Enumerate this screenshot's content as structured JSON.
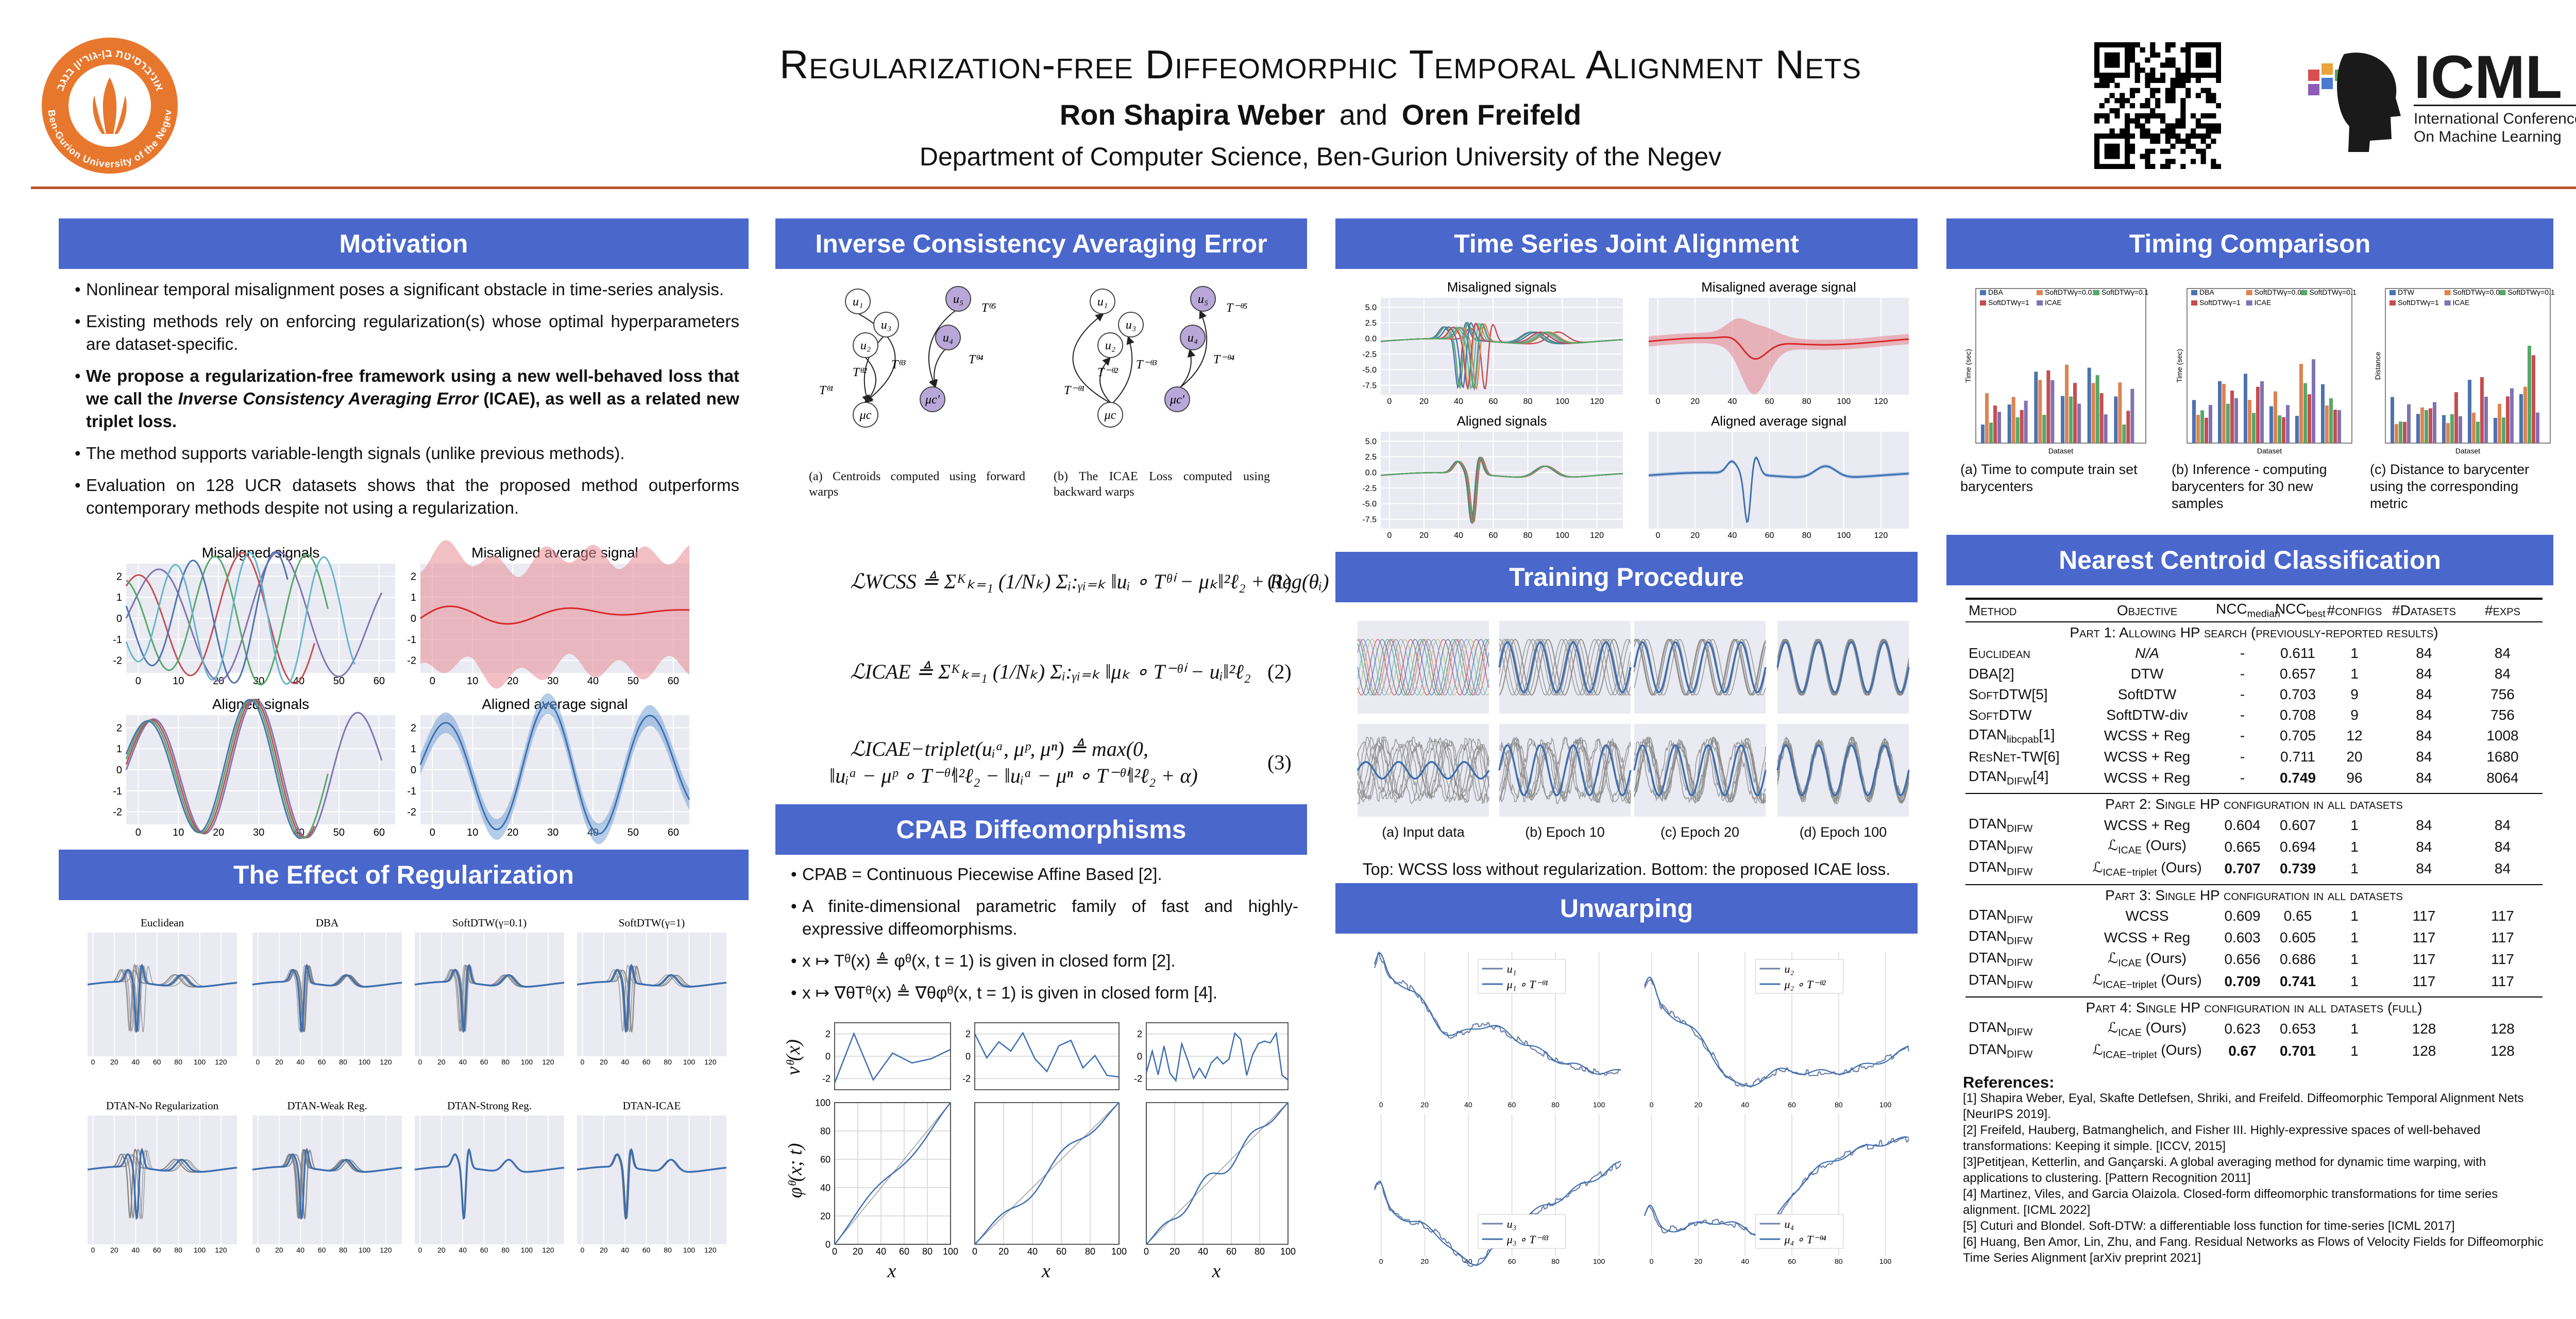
{
  "header": {
    "title": "Regularization-free Diffeomorphic Temporal Alignment Nets",
    "author_1": "Ron Shapira Weber",
    "conjunction": "and",
    "author_2": "Oren Freifeld",
    "affiliation": "Department of Computer Science, Ben-Gurion University of the Negev",
    "university_en": "Ben-Gurion University of the Negev",
    "university_he": "אוניברסיטת בן-גוריון בנגב",
    "conference_short": "ICML",
    "conference_line_1": "International Conference",
    "conference_line_2": "On Machine Learning"
  },
  "motivation": {
    "heading": "Motivation",
    "bullets": [
      [
        {
          "text": "Nonlinear temporal misalignment poses a significant obstacle in time-series analysis."
        }
      ],
      [
        {
          "text": "Existing methods rely on enforcing regularization(s) whose optimal hyperparameters are dataset-specific."
        }
      ],
      [
        {
          "text": "We propose a regularization-free framework using a new well-behaved loss that we call the ",
          "style": "bold"
        },
        {
          "text": "Inverse Consistency Averaging Error",
          "style": "bold-italic"
        },
        {
          "text": " (ICAE), as well as a related new triplet loss.",
          "style": "bold"
        }
      ],
      [
        {
          "text": "The method supports variable-length signals (unlike previous methods)."
        }
      ],
      [
        {
          "text": "Evaluation on 128 UCR datasets shows that the proposed method outperforms contemporary methods despite not using a regularization."
        }
      ]
    ],
    "plots": {
      "xlim": [
        -3,
        64
      ],
      "ylim": [
        -2.6,
        2.6
      ],
      "xticks": [
        0,
        10,
        20,
        30,
        40,
        50,
        60
      ],
      "yticks": [
        2,
        1,
        0,
        -1,
        -2
      ],
      "panels": [
        {
          "title": "Misaligned signals"
        },
        {
          "title": "Misaligned average signal"
        },
        {
          "title": "Aligned signals"
        },
        {
          "title": "Aligned average signal"
        }
      ]
    }
  },
  "regularization": {
    "heading": "The Effect of Regularization",
    "plots": {
      "xlim": [
        -5,
        135
      ],
      "xticks": [
        0,
        20,
        40,
        60,
        80,
        100,
        120
      ],
      "panels": [
        {
          "title": "Euclidean"
        },
        {
          "title": "DBA"
        },
        {
          "title": "SoftDTW(γ=0.1)"
        },
        {
          "title": "SoftDTW(γ=1)"
        },
        {
          "title": "DTAN-No Regularization"
        },
        {
          "title": "DTAN-Weak Reg."
        },
        {
          "title": "DTAN-Strong Reg."
        },
        {
          "title": "DTAN-ICAE"
        }
      ]
    }
  },
  "icae": {
    "heading": "Inverse Consistency Averaging Error",
    "diagram_a": {
      "nodes": [
        "u₁",
        "u₃",
        "u₂",
        "μc",
        "u₅",
        "u₄",
        "μc′"
      ],
      "edge_labels": [
        "Tᶿ¹",
        "Tᶿ²",
        "Tᶿ³",
        "Tᶿ⁵",
        "Tᶿ⁴"
      ],
      "caption": "(a) Centroids computed using forward warps"
    },
    "diagram_b": {
      "nodes": [
        "u₁",
        "u₃",
        "u₂",
        "μc",
        "u₅",
        "u₄",
        "μc′"
      ],
      "edge_labels": [
        "T⁻ᶿ¹",
        "T⁻ᶿ²",
        "T⁻ᶿ³",
        "T⁻ᶿ⁵",
        "T⁻ᶿ⁴"
      ],
      "caption": "(b) The ICAE Loss computed using backward warps"
    },
    "equations": [
      {
        "lines": [
          "ℒWCSS ≜ Σᴷₖ₌₁ (1/Nₖ) Σᵢ:ᵧᵢ₌ₖ ‖uᵢ ∘ Tᶿⁱ − μₖ‖²ℓ₂ + Reg(θᵢ)"
        ],
        "number": "(1)"
      },
      {
        "lines": [
          "ℒICAE ≜ Σᴷₖ₌₁ (1/Nₖ) Σᵢ:ᵧᵢ₌ₖ ‖μₖ ∘ T⁻ᶿⁱ − uᵢ‖²ℓ₂"
        ],
        "number": "(2)"
      },
      {
        "lines": [
          "ℒICAE−triplet(uᵢᵃ, μᵖ, μⁿ) ≜ max(0,",
          "‖uᵢᵃ − μᵖ ∘ T⁻ᶿⁱ‖²ℓ₂ − ‖uᵢᵃ − μⁿ ∘ T⁻ᶿⁱ‖²ℓ₂ + α)"
        ],
        "number": "(3)"
      }
    ]
  },
  "cpab": {
    "heading": "CPAB Diffeomorphisms",
    "bullets": [
      "CPAB = Continuous Piecewise Affine Based [2].",
      "A finite-dimensional parametric family of fast and highly-expressive diffeomorphisms.",
      "x ↦ Tᶿ(x) ≜ φᶿ(x, t = 1) is given in closed form [2].",
      "x ↦ ∇θTᶿ(x) ≜ ∇θφᶿ(x, t = 1) is given in closed form [4]."
    ],
    "velocity": {
      "ylabel": "vᶿ(x)",
      "xlim": [
        0,
        100
      ],
      "ylim": [
        -3,
        3
      ],
      "yticks": [
        2,
        0,
        -2
      ]
    },
    "transform": {
      "ylabel": "φᶿ(x; t)",
      "xlabel": "x",
      "xlim": [
        0,
        100
      ],
      "ylim": [
        0,
        100
      ],
      "xticks": [
        0,
        20,
        40,
        60,
        80,
        100
      ],
      "yticks": [
        0,
        20,
        40,
        60,
        80,
        100
      ]
    }
  },
  "joint_alignment": {
    "heading": "Time Series Joint Alignment",
    "xlim": [
      -5,
      135
    ],
    "ylim": [
      -9,
      6.5
    ],
    "xticks": [
      0,
      20,
      40,
      60,
      80,
      100,
      120
    ],
    "yticks": [
      {
        "value": 5,
        "label": "5.0"
      },
      {
        "value": 2.5,
        "label": "2.5"
      },
      {
        "value": 0,
        "label": "0.0"
      },
      {
        "value": -2.5,
        "label": "-2.5"
      },
      {
        "value": -5,
        "label": "-5.0"
      },
      {
        "value": -7.5,
        "label": "-7.5"
      }
    ],
    "panels": [
      {
        "title": "Misaligned signals"
      },
      {
        "title": "Misaligned average signal"
      },
      {
        "title": "Aligned signals"
      },
      {
        "title": "Aligned average signal"
      }
    ]
  },
  "training": {
    "heading": "Training Procedure",
    "captions": [
      "(a) Input data",
      "(b) Epoch 10",
      "(c) Epoch 20",
      "(d) Epoch 100"
    ],
    "note": "Top: WCSS loss without regularization. Bottom: the proposed ICAE loss."
  },
  "unwarping": {
    "heading": "Unwarping",
    "xlim": [
      -3,
      110
    ],
    "xticks": [
      0,
      20,
      40,
      60,
      80,
      100
    ],
    "panels": [
      {
        "legend": [
          "u₁",
          "μ₁ ∘ T⁻ᶿ¹"
        ]
      },
      {
        "legend": [
          "u₂",
          "μ₂ ∘ T⁻ᶿ²"
        ]
      },
      {
        "legend": [
          "u₃",
          "μ₃ ∘ T⁻ᶿ³"
        ]
      },
      {
        "legend": [
          "u₄",
          "μ₄ ∘ T⁻ᶿ⁴"
        ]
      }
    ]
  },
  "timing": {
    "heading": "Timing Comparison",
    "charts": [
      {
        "legend": [
          "DBA",
          "SoftDTWγ=0.01",
          "SoftDTWγ=0.1",
          "SoftDTWγ=1",
          "ICAE"
        ],
        "xlabel": "Dataset",
        "ylabel": "Time (sec)",
        "caption": "(a) Time to compute train set barycenters"
      },
      {
        "legend": [
          "DBA",
          "SoftDTWγ=0.01",
          "SoftDTWγ=0.1",
          "SoftDTWγ=1",
          "ICAE"
        ],
        "xlabel": "Dataset",
        "ylabel": "Time (sec)",
        "caption": "(b) Inference - computing barycenters for 30 new samples"
      },
      {
        "legend": [
          "DTW",
          "SoftDTWγ=0.01",
          "SoftDTWγ=0.1",
          "SoftDTWγ=1",
          "ICAE"
        ],
        "xlabel": "Dataset",
        "ylabel": "Distance",
        "caption": "(c) Distance to barycenter using the corresponding metric"
      }
    ],
    "colors": [
      "#4c72b0",
      "#dd8452",
      "#55a868",
      "#c44e52",
      "#8172b3"
    ]
  },
  "ncc": {
    "heading": "Nearest Centroid Classification",
    "columns": [
      "Method",
      "Objective",
      {
        "text": "NCC",
        "sub": "median"
      },
      {
        "text": "NCC",
        "sub": "best"
      },
      "#configs",
      "#Datasets",
      "#exps"
    ],
    "parts": [
      {
        "title": "Part 1: Allowing HP search (previously-reported results)",
        "rows": [
          {
            "cells": [
              "Euclidean",
              "N/A",
              "-",
              "0.611",
              "1",
              "84",
              "84"
            ],
            "italic": [
              1
            ]
          },
          {
            "cells": [
              "DBA[2]",
              "DTW",
              "-",
              "0.657",
              "1",
              "84",
              "84"
            ]
          },
          {
            "cells": [
              "SoftDTW[5]",
              "SoftDTW",
              "-",
              "0.703",
              "9",
              "84",
              "756"
            ]
          },
          {
            "cells": [
              "SoftDTW",
              "SoftDTW-div",
              "-",
              "0.708",
              "9",
              "84",
              "756"
            ]
          },
          {
            "cells": [
              {
                "text": "DTAN",
                "sub": "libcpab",
                "after": "[1]"
              },
              "WCSS + Reg",
              "-",
              "0.705",
              "12",
              "84",
              "1008"
            ]
          },
          {
            "cells": [
              "ResNet-TW[6]",
              "WCSS + Reg",
              "-",
              "0.711",
              "20",
              "84",
              "1680"
            ]
          },
          {
            "cells": [
              {
                "text": "DTAN",
                "sub": "DIFW",
                "after": "[4]"
              },
              "WCSS + Reg",
              "-",
              "0.749",
              "96",
              "84",
              "8064"
            ],
            "bold": [
              3
            ]
          }
        ]
      },
      {
        "title": "Part 2: Single HP configuration in all datasets",
        "rows": [
          {
            "cells": [
              {
                "text": "DTAN",
                "sub": "DIFW"
              },
              "WCSS + Reg",
              "0.604",
              "0.607",
              "1",
              "84",
              "84"
            ]
          },
          {
            "cells": [
              {
                "text": "DTAN",
                "sub": "DIFW"
              },
              {
                "text": "ℒ",
                "sub": "ICAE",
                "after": " (Ours)"
              },
              "0.665",
              "0.694",
              "1",
              "84",
              "84"
            ]
          },
          {
            "cells": [
              {
                "text": "DTAN",
                "sub": "DIFW"
              },
              {
                "text": "ℒ",
                "sub": "ICAE−triplet",
                "after": " (Ours)"
              },
              "0.707",
              "0.739",
              "1",
              "84",
              "84"
            ],
            "bold": [
              2,
              3
            ]
          }
        ]
      },
      {
        "title": "Part 3: Single HP configuration in all datasets",
        "rows": [
          {
            "cells": [
              {
                "text": "DTAN",
                "sub": "DIFW"
              },
              "WCSS",
              "0.609",
              "0.65",
              "1",
              "117",
              "117"
            ]
          },
          {
            "cells": [
              {
                "text": "DTAN",
                "sub": "DIFW"
              },
              "WCSS + Reg",
              "0.603",
              "0.605",
              "1",
              "117",
              "117"
            ]
          },
          {
            "cells": [
              {
                "text": "DTAN",
                "sub": "DIFW"
              },
              {
                "text": "ℒ",
                "sub": "ICAE",
                "after": " (Ours)"
              },
              "0.656",
              "0.686",
              "1",
              "117",
              "117"
            ]
          },
          {
            "cells": [
              {
                "text": "DTAN",
                "sub": "DIFW"
              },
              {
                "text": "ℒ",
                "sub": "ICAE−triplet",
                "after": " (Ours)"
              },
              "0.709",
              "0.741",
              "1",
              "117",
              "117"
            ],
            "bold": [
              2,
              3
            ]
          }
        ]
      },
      {
        "title": "Part 4: Single HP configuration in all datasets (full)",
        "rows": [
          {
            "cells": [
              {
                "text": "DTAN",
                "sub": "DIFW"
              },
              {
                "text": "ℒ",
                "sub": "ICAE",
                "after": " (Ours)"
              },
              "0.623",
              "0.653",
              "1",
              "128",
              "128"
            ]
          },
          {
            "cells": [
              {
                "text": "DTAN",
                "sub": "DIFW"
              },
              {
                "text": "ℒ",
                "sub": "ICAE−triplet",
                "after": " (Ours)"
              },
              "0.67",
              "0.701",
              "1",
              "128",
              "128"
            ],
            "bold": [
              2,
              3
            ]
          }
        ]
      }
    ]
  },
  "references": {
    "title": "References:",
    "items": [
      "[1] Shapira Weber, Eyal, Skafte Detlefsen, Shriki, and Freifeld. Diffeomorphic Temporal Alignment Nets [NeurIPS 2019].",
      "[2] Freifeld, Hauberg, Batmanghelich, and Fisher III. Highly-expressive spaces of well-behaved transformations: Keeping it simple. [ICCV, 2015]",
      "[3]Petitjean, Ketterlin, and Gançarski. A global averaging method for dynamic time warping, with applications to clustering. [Pattern Recognition 2011]",
      "[4] Martinez, Viles, and Garcia Olaizola. Closed-form diffeomorphic transformations for time series alignment. [ICML 2022]",
      "[5] Cuturi and Blondel. Soft-DTW: a differentiable loss function for time-series [ICML 2017]",
      "[6] Huang, Ben Amor, Lin, Zhu, and Fang. Residual Networks as Flows of Velocity Fields for Diffeomorphic Time Series Alignment [arXiv preprint 2021]"
    ]
  }
}
